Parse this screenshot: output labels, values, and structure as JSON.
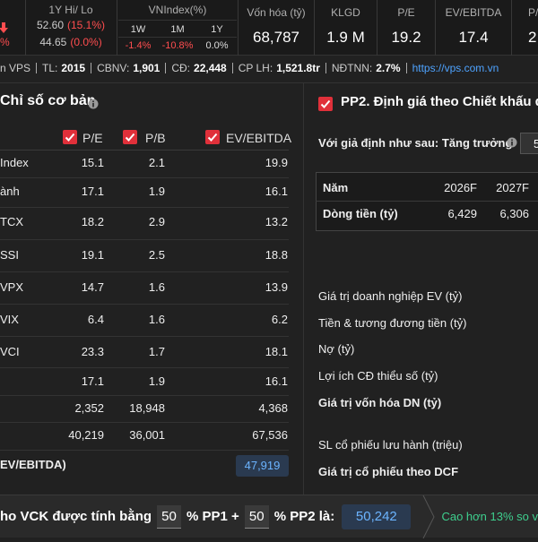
{
  "header_bar": {
    "change": "%",
    "hi_lo": {
      "label": "1Y Hi/ Lo",
      "high": "52.60",
      "high_change": "(15.1%)",
      "low": "44.65",
      "low_change": "(0.0%)"
    },
    "vnindex": {
      "label": "VNIndex(%)",
      "periods": [
        "1W",
        "1M",
        "1Y"
      ],
      "values": [
        "-1.4%",
        "-10.8%",
        "0.0%"
      ]
    },
    "metrics": [
      {
        "label": "Vốn hóa (tỷ)",
        "value": "68,787"
      },
      {
        "label": "KLGD",
        "value": "1.9 M"
      },
      {
        "label": "P/E",
        "value": "19.2"
      },
      {
        "label": "EV/EBITDA",
        "value": "17.4"
      },
      {
        "label": "P/",
        "value": "2."
      }
    ]
  },
  "info_line": {
    "company": "n VPS",
    "fields": [
      {
        "label": "TL:",
        "value": "2015"
      },
      {
        "label": "CBNV:",
        "value": "1,901"
      },
      {
        "label": "CĐ:",
        "value": "22,448"
      },
      {
        "label": "CP LH:",
        "value": "1,521.8tr"
      },
      {
        "label": "NĐTNN:",
        "value": "2.7%"
      }
    ],
    "link": "https://vps.com.vn"
  },
  "left_panel": {
    "title": "Chỉ số cơ bản",
    "columns": [
      "P/E",
      "P/B",
      "EV/EBITDA"
    ],
    "rows": [
      {
        "label": "Index",
        "values": [
          "15.1",
          "2.1",
          "19.9"
        ]
      },
      {
        "label": "ành",
        "values": [
          "17.1",
          "1.9",
          "16.1"
        ]
      },
      {
        "label": "TCX",
        "values": [
          "18.2",
          "2.9",
          "13.2"
        ]
      },
      {
        "label": "SSI",
        "values": [
          "19.1",
          "2.5",
          "18.8"
        ]
      },
      {
        "label": "VPX",
        "values": [
          "14.7",
          "1.6",
          "13.9"
        ]
      },
      {
        "label": "VIX",
        "values": [
          "6.4",
          "1.6",
          "6.2"
        ]
      },
      {
        "label": "VCI",
        "values": [
          "23.3",
          "1.7",
          "18.1"
        ]
      },
      {
        "values": [
          "17.1",
          "1.9",
          "16.1"
        ]
      },
      {
        "values": [
          "2,352",
          "18,948",
          "4,368"
        ]
      },
      {
        "values": [
          "40,219",
          "36,001",
          "67,536"
        ]
      }
    ],
    "footer": {
      "label": "EV/EBITDA)",
      "value": "47,919"
    }
  },
  "right_panel": {
    "title": "PP2. Định giá theo Chiết khấu d",
    "assumption": {
      "label": "Với giả định như sau: Tăng trưởng",
      "input": "5"
    },
    "table": {
      "header": [
        "Năm",
        "2026F",
        "2027F"
      ],
      "rows": [
        [
          "Dòng tiền (tỷ)",
          "6,429",
          "6,306"
        ]
      ]
    },
    "items": [
      {
        "label": "Giá trị doanh nghiệp EV (tỷ)",
        "bold": false
      },
      {
        "label": "Tiền & tương đương tiền (tỷ)",
        "bold": false
      },
      {
        "label": "Nợ (tỷ)",
        "bold": false
      },
      {
        "label": "Lợi ích CĐ thiểu số (tỷ)",
        "bold": false
      },
      {
        "label": "Giá trị vốn hóa DN (tỷ)",
        "bold": true
      },
      {
        "label": "SL cổ phiếu lưu hành (triệu)",
        "bold": false
      },
      {
        "label": "Giá trị cổ phiếu theo DCF",
        "bold": true
      }
    ]
  },
  "bottom_bar": {
    "prefix": "ho VCK được tính bằng",
    "pp1_weight": "50",
    "pp1_label": "% PP1 +",
    "pp2_weight": "50",
    "pp2_label": "% PP2 là:",
    "result": "50,242",
    "comparison": "Cao hơn 13% so v"
  }
}
